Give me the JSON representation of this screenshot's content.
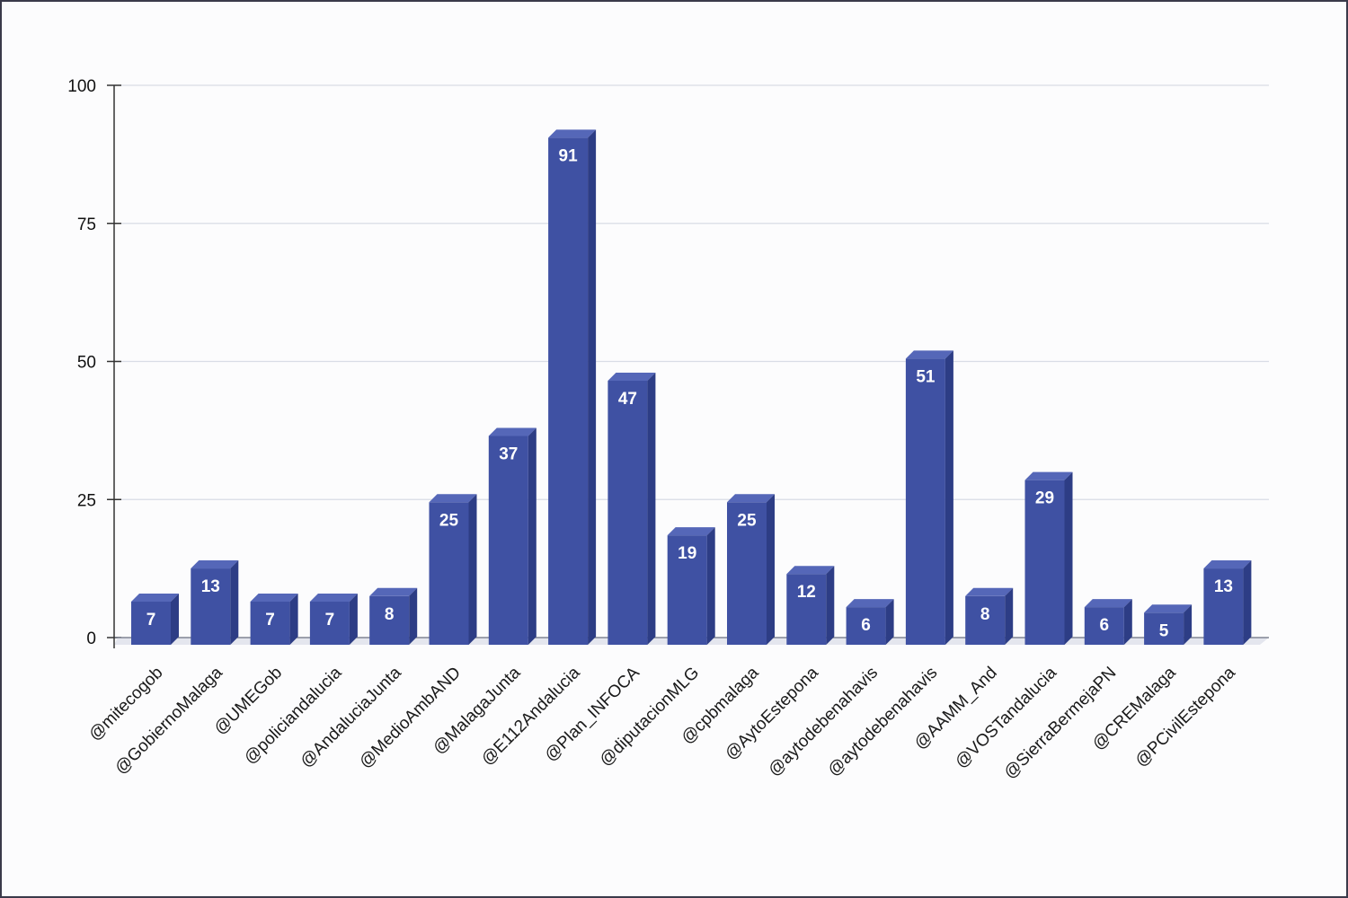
{
  "chart_data": {
    "type": "bar",
    "categories": [
      "@mitecogob",
      "@GobiernoMalaga",
      "@UMEGob",
      "@policiandalucia",
      "@AndaluciaJunta",
      "@MedioAmbAND",
      "@MalagaJunta",
      "@E112Andalucia",
      "@Plan_INFOCA",
      "@diputacionMLG",
      "@cpbmalaga",
      "@AytoEstepona",
      "@aytodebenahavis",
      "@aytodebenahavis",
      "@AAMM_And",
      "@VOSTandalucia",
      "@SierraBermejaPN",
      "@CREMalaga",
      "@PCivilEstepona"
    ],
    "values": [
      7,
      13,
      7,
      7,
      8,
      25,
      37,
      91,
      47,
      19,
      25,
      12,
      6,
      51,
      8,
      29,
      6,
      5,
      13
    ],
    "ylim": [
      0,
      100
    ],
    "yticks": [
      0,
      25,
      50,
      75,
      100
    ],
    "grid": true,
    "colors": {
      "bar_front": "#3f51a3",
      "bar_top": "#5567b8",
      "bar_side": "#2d3d85",
      "grid": "#d9dce6",
      "floor": "#e4e6ee"
    }
  }
}
